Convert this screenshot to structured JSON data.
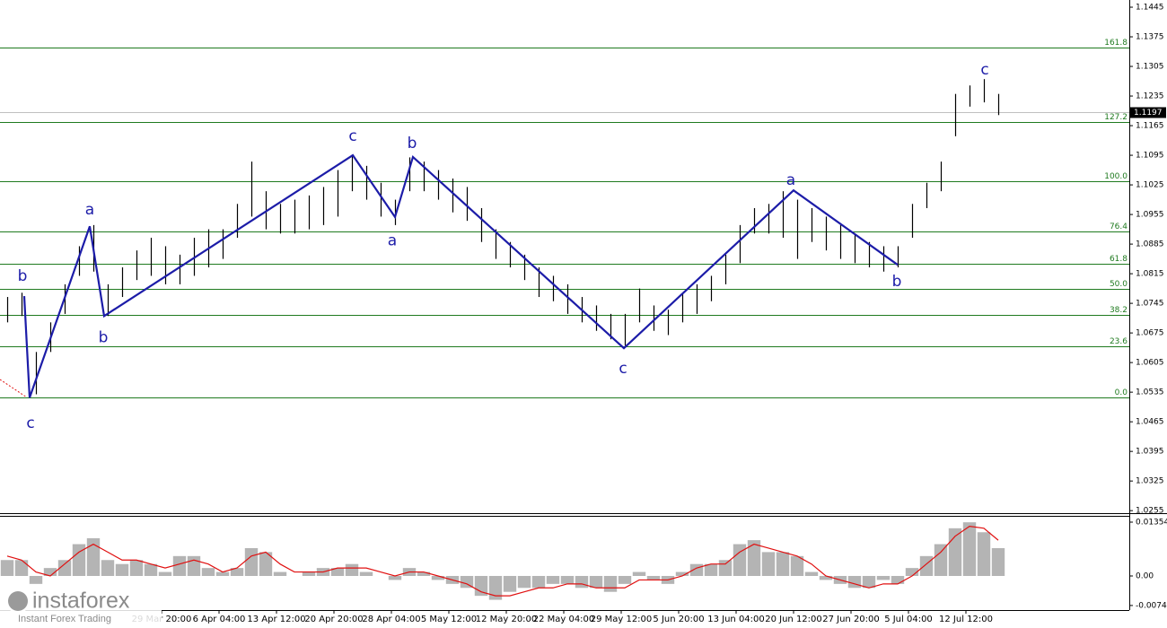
{
  "chart_data": [
    {
      "type": "range",
      "x": [
        2,
        6,
        10,
        14,
        18,
        22,
        26,
        30,
        34,
        38,
        42,
        46,
        50,
        54,
        58,
        62,
        66,
        70,
        74,
        78,
        82,
        86,
        90,
        94,
        98,
        102,
        106,
        110,
        114,
        118,
        122,
        126,
        130,
        134,
        138,
        142,
        146,
        150,
        154,
        158,
        162,
        166,
        170,
        174,
        178,
        182,
        186,
        190,
        194,
        198,
        202,
        206,
        210,
        214,
        218,
        222,
        226,
        230,
        234,
        238,
        242,
        246,
        250,
        254,
        258,
        262,
        266,
        270,
        274,
        278
      ],
      "high": [
        1.076,
        1.077,
        1.063,
        1.07,
        1.079,
        1.088,
        1.093,
        1.079,
        1.083,
        1.087,
        1.09,
        1.088,
        1.086,
        1.09,
        1.092,
        1.092,
        1.098,
        1.108,
        1.101,
        1.098,
        1.099,
        1.1,
        1.102,
        1.106,
        1.1095,
        1.107,
        1.103,
        1.099,
        1.109,
        1.108,
        1.106,
        1.104,
        1.102,
        1.097,
        1.092,
        1.089,
        1.086,
        1.083,
        1.081,
        1.079,
        1.076,
        1.074,
        1.072,
        1.072,
        1.078,
        1.074,
        1.073,
        1.077,
        1.079,
        1.081,
        1.086,
        1.093,
        1.097,
        1.098,
        1.101,
        1.099,
        1.097,
        1.095,
        1.093,
        1.091,
        1.089,
        1.088,
        1.088,
        1.098,
        1.103,
        1.108,
        1.124,
        1.126,
        1.1275,
        1.124
      ],
      "low": [
        1.07,
        1.0715,
        1.053,
        1.063,
        1.072,
        1.081,
        1.082,
        1.0715,
        1.076,
        1.08,
        1.081,
        1.079,
        1.079,
        1.081,
        1.083,
        1.085,
        1.09,
        1.095,
        1.092,
        1.091,
        1.091,
        1.092,
        1.093,
        1.095,
        1.101,
        1.099,
        1.095,
        1.093,
        1.101,
        1.101,
        1.099,
        1.096,
        1.094,
        1.089,
        1.085,
        1.083,
        1.08,
        1.076,
        1.075,
        1.072,
        1.07,
        1.068,
        1.066,
        1.0645,
        1.07,
        1.068,
        1.067,
        1.07,
        1.072,
        1.075,
        1.079,
        1.084,
        1.091,
        1.091,
        1.09,
        1.085,
        1.089,
        1.087,
        1.085,
        1.084,
        1.083,
        1.082,
        1.083,
        1.09,
        1.097,
        1.101,
        1.114,
        1.121,
        1.122,
        1.119
      ],
      "color": "#000000",
      "xlim": [
        0,
        314.5
      ],
      "ylim": [
        1.0249,
        1.1462
      ],
      "yticks": [
        1.1445,
        1.1375,
        1.1305,
        1.1235,
        1.1165,
        1.1095,
        1.1025,
        1.0955,
        1.0885,
        1.0815,
        1.0745,
        1.0675,
        1.0605,
        1.0535,
        1.0465,
        1.0395,
        1.0325,
        1.0255
      ],
      "xticks": [
        {
          "value": 45,
          "label": "29 Mar 20:00"
        },
        {
          "value": 61,
          "label": "6 Apr 04:00"
        },
        {
          "value": 77,
          "label": "13 Apr 12:00"
        },
        {
          "value": 93,
          "label": "20 Apr 20:00"
        },
        {
          "value": 109,
          "label": "28 Apr 04:00"
        },
        {
          "value": 125,
          "label": "5 May 12:00"
        },
        {
          "value": 141,
          "label": "12 May 20:00"
        },
        {
          "value": 157,
          "label": "22 May 04:00"
        },
        {
          "value": 173,
          "label": "29 May 12:00"
        },
        {
          "value": 189,
          "label": "5 Jun 20:00"
        },
        {
          "value": 205,
          "label": "13 Jun 04:00"
        },
        {
          "value": 221,
          "label": "20 Jun 12:00"
        },
        {
          "value": 237,
          "label": "27 Jun 20:00"
        },
        {
          "value": 253,
          "label": "5 Jul 04:00"
        },
        {
          "value": 269,
          "label": "12 Jul 12:00"
        }
      ],
      "levels": [
        {
          "value": 1.135,
          "label": "161.8"
        },
        {
          "value": 1.1173,
          "label": "127.2"
        },
        {
          "value": 1.1033,
          "label": "100.0"
        },
        {
          "value": 1.0915,
          "label": "76.4"
        },
        {
          "value": 1.0838,
          "label": "61.8"
        },
        {
          "value": 1.0779,
          "label": "50.0"
        },
        {
          "value": 1.0717,
          "label": "38.2"
        },
        {
          "value": 1.0643,
          "label": "23.6"
        },
        {
          "value": 1.0522,
          "label": "0.0"
        }
      ],
      "level_color": "#1f7a1f",
      "current_price": 1.1197,
      "wave_line": {
        "color": "#1c1ca8",
        "x": [
          6.75,
          8.25,
          25,
          29,
          98.25,
          110,
          115,
          173.75,
          221,
          250
        ],
        "y": [
          1.0762,
          1.0522,
          1.0927,
          1.0715,
          1.1095,
          1.0949,
          1.1091,
          1.0639,
          1.1012,
          1.0836
        ]
      },
      "wave_labels": [
        {
          "text": "b",
          "x": 6.25,
          "y": 1.0809
        },
        {
          "text": "c",
          "x": 8.5,
          "y": 1.0461
        },
        {
          "text": "a",
          "x": 25,
          "y": 1.0966
        },
        {
          "text": "b",
          "x": 28.75,
          "y": 1.0664
        },
        {
          "text": "c",
          "x": 98.25,
          "y": 1.114
        },
        {
          "text": "a",
          "x": 109.25,
          "y": 1.0893
        },
        {
          "text": "b",
          "x": 114.75,
          "y": 1.1123
        },
        {
          "text": "c",
          "x": 173.5,
          "y": 1.059
        },
        {
          "text": "a",
          "x": 220.25,
          "y": 1.1036
        },
        {
          "text": "b",
          "x": 249.75,
          "y": 1.0796
        },
        {
          "text": "c",
          "x": 274.25,
          "y": 1.1297
        }
      ]
    },
    {
      "type": "macd",
      "x": [
        2,
        6,
        10,
        14,
        18,
        22,
        26,
        30,
        34,
        38,
        42,
        46,
        50,
        54,
        58,
        62,
        66,
        70,
        74,
        78,
        82,
        86,
        90,
        94,
        98,
        102,
        106,
        110,
        114,
        118,
        122,
        126,
        130,
        134,
        138,
        142,
        146,
        150,
        154,
        158,
        162,
        166,
        170,
        174,
        178,
        182,
        186,
        190,
        194,
        198,
        202,
        206,
        210,
        214,
        218,
        222,
        226,
        230,
        234,
        238,
        242,
        246,
        250,
        254,
        258,
        262,
        266,
        270,
        274,
        278
      ],
      "histogram": [
        0.004,
        0.004,
        -0.002,
        0.002,
        0.004,
        0.008,
        0.0095,
        0.004,
        0.003,
        0.004,
        0.003,
        0.001,
        0.005,
        0.005,
        0.002,
        0.001,
        0.002,
        0.007,
        0.006,
        0.001,
        0,
        0.001,
        0.002,
        0.002,
        0.003,
        0.001,
        0,
        -0.001,
        0.002,
        0.001,
        -0.001,
        -0.002,
        -0.003,
        -0.005,
        -0.006,
        -0.004,
        -0.003,
        -0.003,
        -0.002,
        -0.002,
        -0.003,
        -0.003,
        -0.004,
        -0.002,
        0.001,
        -0.001,
        -0.002,
        0.001,
        0.003,
        0.003,
        0.004,
        0.008,
        0.009,
        0.006,
        0.006,
        0.005,
        0.001,
        -0.001,
        -0.002,
        -0.003,
        -0.003,
        -0.001,
        -0.002,
        0.002,
        0.005,
        0.008,
        0.012,
        0.0135,
        0.011,
        0.007
      ],
      "signal": [
        0.005,
        0.004,
        0.001,
        0,
        0.003,
        0.006,
        0.008,
        0.006,
        0.004,
        0.004,
        0.003,
        0.002,
        0.003,
        0.004,
        0.003,
        0.001,
        0.002,
        0.005,
        0.006,
        0.003,
        0.001,
        0.001,
        0.001,
        0.002,
        0.002,
        0.002,
        0.001,
        0,
        0.001,
        0.001,
        0,
        -0.001,
        -0.002,
        -0.004,
        -0.005,
        -0.005,
        -0.004,
        -0.003,
        -0.003,
        -0.002,
        -0.002,
        -0.003,
        -0.003,
        -0.003,
        -0.001,
        -0.001,
        -0.001,
        0,
        0.002,
        0.003,
        0.003,
        0.006,
        0.008,
        0.007,
        0.006,
        0.005,
        0.003,
        0,
        -0.001,
        -0.002,
        -0.003,
        -0.002,
        -0.002,
        0,
        0.003,
        0.006,
        0.01,
        0.0125,
        0.012,
        0.009
      ],
      "histogram_color": "#b4b4b4",
      "signal_color": "#e01010",
      "xlim": [
        0,
        314.5
      ],
      "ylim": [
        -0.00858,
        0.01512
      ],
      "yticks": [
        0.01354,
        {
          "value": 0,
          "label": "0.00"
        },
        -0.00743
      ]
    }
  ],
  "watermark": {
    "brand": "instaforex",
    "tagline": "Instant Forex Trading"
  }
}
